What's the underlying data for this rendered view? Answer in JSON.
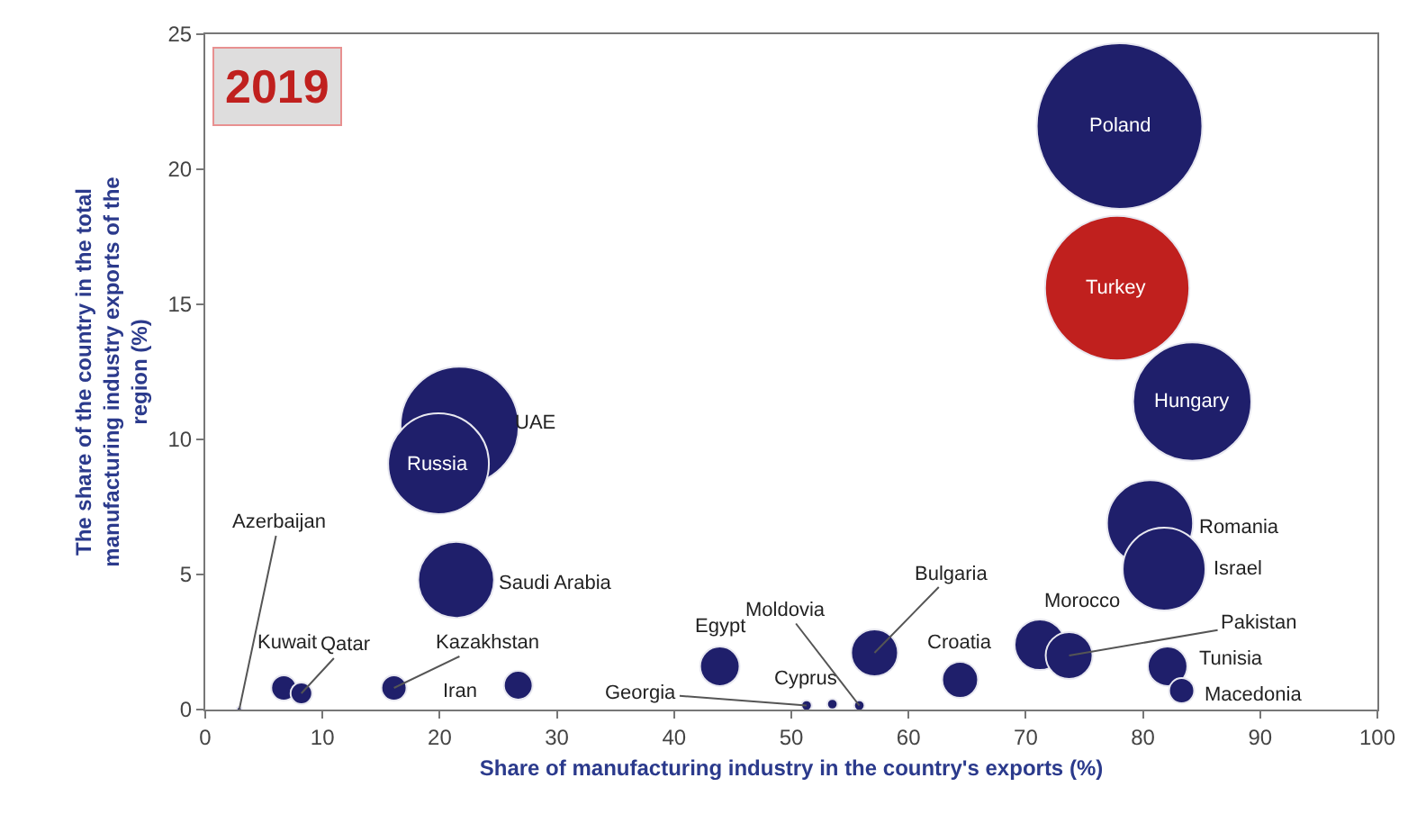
{
  "chart_data": {
    "type": "bubble",
    "title": "2019",
    "xlabel": "Share of manufacturing industry in the country's exports (%)",
    "ylabel": "The share of the country in the total\nmanufacturing industry exports of the\nregion (%)",
    "x": [
      78,
      77.8,
      84.2,
      21.7,
      19.9,
      21.4,
      80.6,
      81.8,
      2.9,
      6.7,
      8.2,
      16.1,
      26.7,
      43.9,
      51.3,
      53.5,
      55.8,
      57.1,
      64.4,
      71.2,
      73.7,
      82.1,
      83.3
    ],
    "values": [
      21.6,
      15.6,
      11.4,
      10.5,
      9.1,
      4.8,
      6.9,
      5.2,
      0,
      0.8,
      0.6,
      0.8,
      0.9,
      1.6,
      0.15,
      0.2,
      0.15,
      2.1,
      1.1,
      2.4,
      2.0,
      1.6,
      0.7
    ],
    "sizes": [
      1,
      0.76,
      0.51,
      0.51,
      0.37,
      0.21,
      0.27,
      0.25,
      0.001,
      0.023,
      0.017,
      0.023,
      0.03,
      0.057,
      0.004,
      0.004,
      0.004,
      0.08,
      0.047,
      0.093,
      0.08,
      0.057,
      0.023
    ],
    "colors": [
      "#1f1f6b",
      "#c0201e",
      "#1f1f6b",
      "#1f1f6b",
      "#1f1f6b",
      "#1f1f6b",
      "#1f1f6b",
      "#1f1f6b",
      "#1f1f6b",
      "#1f1f6b",
      "#1f1f6b",
      "#1f1f6b",
      "#1f1f6b",
      "#1f1f6b",
      "#1f1f6b",
      "#1f1f6b",
      "#1f1f6b",
      "#1f1f6b",
      "#1f1f6b",
      "#1f1f6b",
      "#1f1f6b",
      "#1f1f6b",
      "#1f1f6b"
    ],
    "annotations": [
      {
        "text": "Poland",
        "x": 78,
        "y": 21.6
      },
      {
        "text": "Turkey",
        "x": 77.8,
        "y": 15.6
      },
      {
        "text": "Hungary",
        "x": 84.2,
        "y": 11.4
      },
      {
        "text": "UAE",
        "x": 21.7,
        "y": 10.5
      },
      {
        "text": "Russia",
        "x": 19.9,
        "y": 9.1
      },
      {
        "text": "Saudi Arabia",
        "x": 21.4,
        "y": 4.8
      },
      {
        "text": "Romania",
        "x": 80.6,
        "y": 6.9
      },
      {
        "text": "Israel",
        "x": 81.8,
        "y": 5.2
      },
      {
        "text": "Azerbaijan",
        "x": 2.9,
        "y": 0
      },
      {
        "text": "Kuwait",
        "x": 6.7,
        "y": 0.8
      },
      {
        "text": "Qatar",
        "x": 8.2,
        "y": 0.6
      },
      {
        "text": "Kazakhstan",
        "x": 16.1,
        "y": 0.8
      },
      {
        "text": "Iran",
        "x": 26.7,
        "y": 0.9
      },
      {
        "text": "Egypt",
        "x": 43.9,
        "y": 1.6
      },
      {
        "text": "Georgia",
        "x": 51.3,
        "y": 0.15
      },
      {
        "text": "Cyprus",
        "x": 53.5,
        "y": 0.2
      },
      {
        "text": "Moldovia",
        "x": 55.8,
        "y": 0.15
      },
      {
        "text": "Bulgaria",
        "x": 57.1,
        "y": 2.1
      },
      {
        "text": "Croatia",
        "x": 64.4,
        "y": 1.1
      },
      {
        "text": "Morocco",
        "x": 71.2,
        "y": 2.4
      },
      {
        "text": "Pakistan",
        "x": 73.7,
        "y": 2.0
      },
      {
        "text": "Tunisia",
        "x": 82.1,
        "y": 1.6
      },
      {
        "text": "Macedonia",
        "x": 83.3,
        "y": 0.7
      }
    ],
    "xlim": [
      0,
      100
    ],
    "xticks": [
      0,
      10,
      20,
      30,
      40,
      50,
      60,
      70,
      80,
      90,
      100
    ],
    "ylim": [
      0,
      25
    ],
    "yticks": [
      0,
      5,
      10,
      15,
      20,
      25
    ],
    "legend": false
  }
}
